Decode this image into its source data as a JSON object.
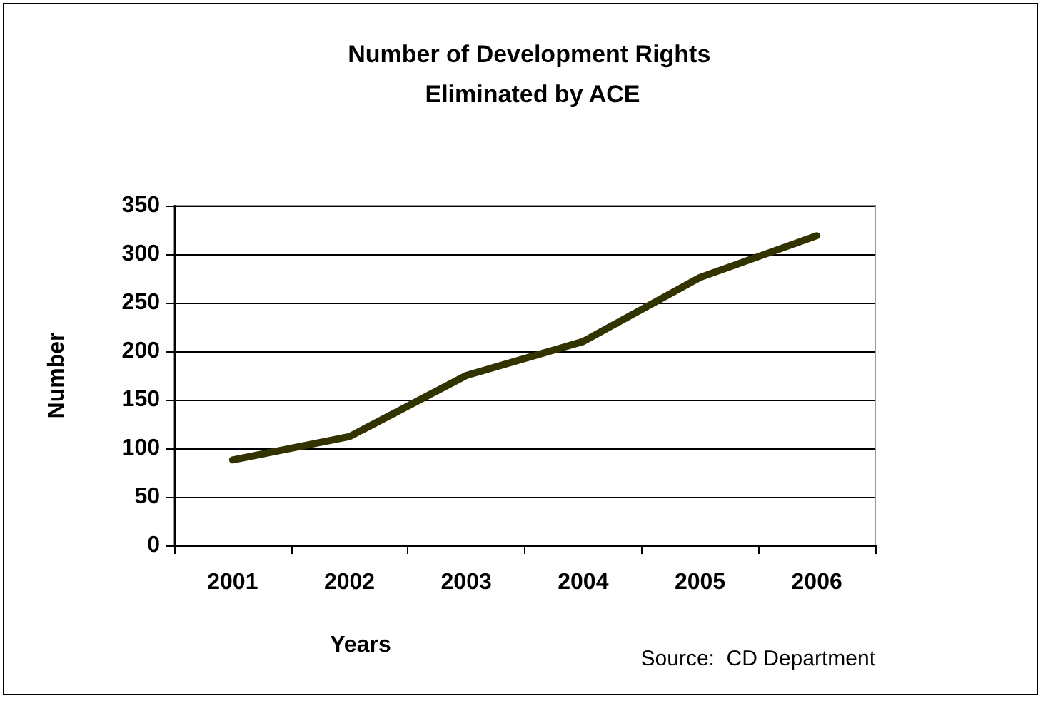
{
  "chart_data": {
    "type": "line",
    "title": "Number of Development Rights Eliminated by ACE",
    "xlabel": "Years",
    "ylabel": "Number",
    "annotations": [
      "Source:  CD Department"
    ],
    "categories": [
      "2001",
      "2002",
      "2003",
      "2004",
      "2005",
      "2006"
    ],
    "series": [
      {
        "color": "#333300",
        "values": [
          88,
          112,
          175,
          210,
          276,
          319
        ]
      }
    ],
    "ylim": [
      0,
      350
    ],
    "yticks": [
      0,
      50,
      100,
      150,
      200,
      250,
      300,
      350
    ],
    "grid": "y",
    "marker": "none",
    "line_style": "solid"
  }
}
